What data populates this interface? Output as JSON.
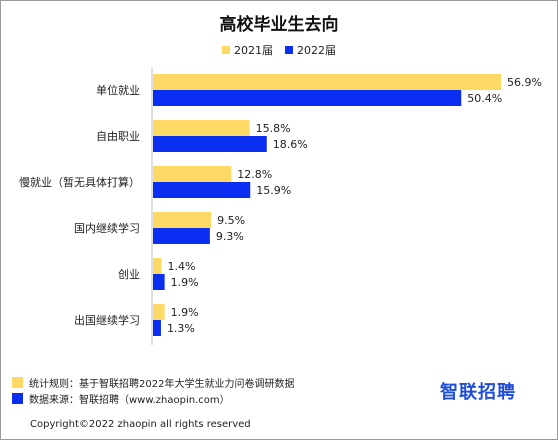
{
  "chart_data": {
    "type": "bar",
    "orientation": "horizontal",
    "title": "高校毕业生去向",
    "categories": [
      "单位就业",
      "自由职业",
      "慢就业（暂无具体打算）",
      "国内继续学习",
      "创业",
      "出国继续学习"
    ],
    "series": [
      {
        "name": "2021届",
        "color": "#FFD966",
        "values": [
          56.9,
          15.8,
          12.8,
          9.5,
          1.4,
          1.9
        ],
        "labels": [
          "56.9%",
          "15.8%",
          "12.8%",
          "9.5%",
          "1.4%",
          "1.9%"
        ]
      },
      {
        "name": "2022届",
        "color": "#0B2FF0",
        "values": [
          50.4,
          18.6,
          15.9,
          9.3,
          1.9,
          1.3
        ],
        "labels": [
          "50.4%",
          "18.6%",
          "15.9%",
          "9.3%",
          "1.9%",
          "1.3%"
        ]
      }
    ],
    "xlim": [
      0,
      57
    ],
    "legend_position": "top",
    "grid": false
  },
  "footnotes": [
    {
      "text": "统计规则：基于智联招聘2022年大学生就业力问卷调研数据",
      "color": "#FFD966"
    },
    {
      "text": "数据来源：智联招聘（www.zhaopin.com）",
      "color": "#0B2FF0"
    }
  ],
  "logo_text": "智联招聘",
  "copyright": "Copyright©2022 zhaopin all rights reserved"
}
